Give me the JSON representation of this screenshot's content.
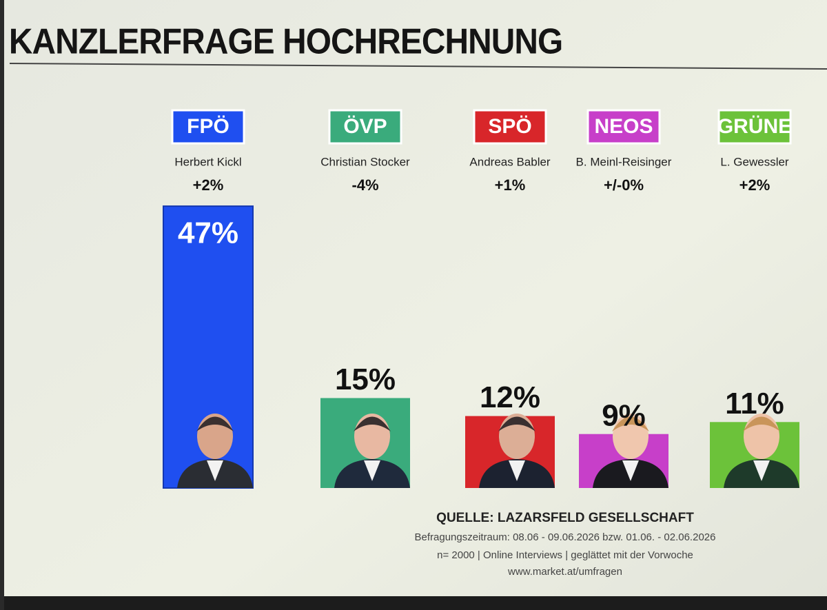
{
  "chart_data": {
    "type": "bar",
    "title": "KANZLERFRAGE HOCHRECHNUNG",
    "categories": [
      "FPÖ",
      "ÖVP",
      "SPÖ",
      "NEOS",
      "GRÜNE"
    ],
    "candidates": [
      "Herbert Kickl",
      "Christian Stocker",
      "Andreas Babler",
      "B. Meinl-Reisinger",
      "L. Gewessler"
    ],
    "changes": [
      2,
      -4,
      1,
      0,
      2
    ],
    "change_labels": [
      "+2%",
      "-4%",
      "+1%",
      "+/-0%",
      "+2%"
    ],
    "values": [
      47,
      15,
      12,
      9,
      11
    ],
    "value_labels": [
      "47%",
      "15%",
      "12%",
      "9%",
      "11%"
    ],
    "colors": [
      "#1f4ff0",
      "#3aab7c",
      "#d8262a",
      "#c73fc9",
      "#6cc23a"
    ],
    "source": "QUELLE: LAZARSFELD GESELLSCHAFT",
    "notes": [
      "Befragungszeitraum: 08.06 - 09.06.2026 bzw. 01.06. - 02.06.2026",
      "n= 2000 | Online Interviews | geglättet mit der Vorwoche",
      "www.market.at/umfragen"
    ]
  }
}
